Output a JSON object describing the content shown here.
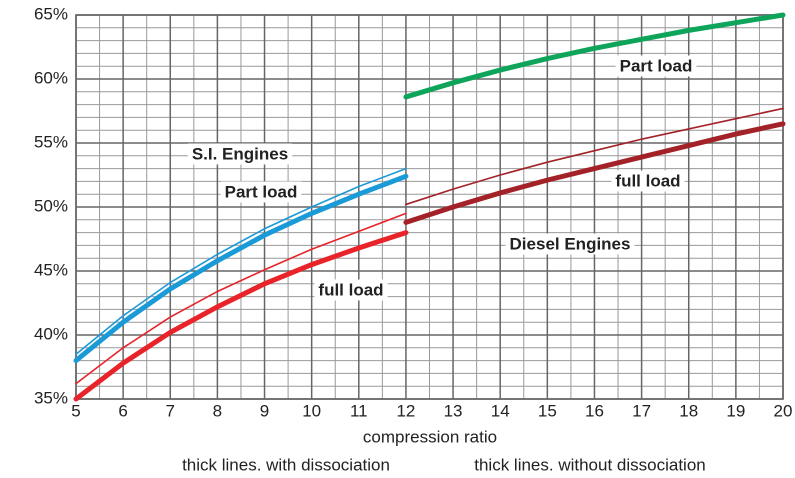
{
  "chart_data": {
    "type": "line",
    "xlabel": "compression ratio",
    "notes": [
      "thick lines. with dissociation",
      "thick lines. without dissociation"
    ],
    "xlim": [
      5,
      20
    ],
    "xticks": [
      5,
      6,
      7,
      8,
      9,
      10,
      11,
      12,
      13,
      14,
      15,
      16,
      17,
      18,
      19,
      20
    ],
    "x_minor_ticks": [
      5.5,
      6.5,
      7.5,
      8.5,
      9.5,
      10.5,
      11.5,
      12.5,
      13.5,
      14.5,
      15.5,
      16.5,
      17.5,
      18.5,
      19.5
    ],
    "ylim": [
      35,
      65
    ],
    "yticks": [
      {
        "value": 35,
        "label": "35%"
      },
      {
        "value": 40,
        "label": "40%"
      },
      {
        "value": 45,
        "label": "45%"
      },
      {
        "value": 50,
        "label": "50%"
      },
      {
        "value": 55,
        "label": "55%"
      },
      {
        "value": 60,
        "label": "60%"
      },
      {
        "value": 65,
        "label": "65%"
      }
    ],
    "y_minor_ticks": [
      36,
      37,
      38,
      39,
      41,
      42,
      43,
      44,
      46,
      47,
      48,
      49,
      51,
      52,
      53,
      54,
      56,
      57,
      58,
      59,
      61,
      62,
      63,
      64
    ],
    "grid": true,
    "series": [
      {
        "color": "#1a9ad6",
        "line_style": "thin",
        "x": [
          5,
          6,
          7,
          8,
          9,
          10,
          11,
          12
        ],
        "values": [
          38.5,
          41.5,
          44.1,
          46.3,
          48.3,
          50.0,
          51.6,
          53.0
        ]
      },
      {
        "color": "#1a9ad6",
        "line_style": "thick",
        "x": [
          5,
          6,
          7,
          8,
          9,
          10,
          11,
          12
        ],
        "values": [
          38.0,
          41.0,
          43.6,
          45.8,
          47.8,
          49.5,
          51.0,
          52.4
        ]
      },
      {
        "color": "#e8232a",
        "line_style": "thin",
        "x": [
          5,
          6,
          7,
          8,
          9,
          10,
          11,
          12
        ],
        "values": [
          36.2,
          39.0,
          41.4,
          43.4,
          45.1,
          46.7,
          48.1,
          49.5
        ]
      },
      {
        "color": "#e8232a",
        "line_style": "thick",
        "x": [
          5,
          6,
          7,
          8,
          9,
          10,
          11,
          12
        ],
        "values": [
          35.0,
          37.8,
          40.2,
          42.2,
          44.0,
          45.5,
          46.8,
          48.0
        ]
      },
      {
        "color": "#0ea55a",
        "line_style": "thick",
        "x": [
          12,
          13,
          14,
          15,
          16,
          17,
          18,
          19,
          20
        ],
        "values": [
          58.6,
          59.7,
          60.7,
          61.6,
          62.4,
          63.1,
          63.8,
          64.4,
          65.0
        ]
      },
      {
        "color": "#a32228",
        "line_style": "thin",
        "x": [
          12,
          13,
          14,
          15,
          16,
          17,
          18,
          19,
          20
        ],
        "values": [
          50.2,
          51.4,
          52.5,
          53.5,
          54.4,
          55.3,
          56.1,
          56.9,
          57.7
        ]
      },
      {
        "color": "#a32228",
        "line_style": "thick",
        "x": [
          12,
          13,
          14,
          15,
          16,
          17,
          18,
          19,
          20
        ],
        "values": [
          48.8,
          50.0,
          51.1,
          52.1,
          53.0,
          53.9,
          54.8,
          55.7,
          56.5
        ]
      }
    ],
    "annotations": [
      {
        "text": "S.I. Engines",
        "color": "#000000"
      },
      {
        "text": "Part load",
        "color": "#1a9ad6"
      },
      {
        "text": "full load",
        "color": "#e8232a"
      },
      {
        "text": "Diesel Engines",
        "color": "#000000"
      },
      {
        "text": "Part load",
        "color": "#0ea55a"
      },
      {
        "text": "full load",
        "color": "#a32228"
      }
    ]
  }
}
